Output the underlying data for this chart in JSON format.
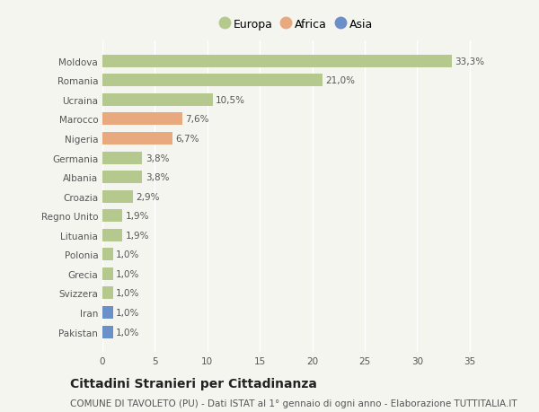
{
  "categories": [
    "Pakistan",
    "Iran",
    "Svizzera",
    "Grecia",
    "Polonia",
    "Lituania",
    "Regno Unito",
    "Croazia",
    "Albania",
    "Germania",
    "Nigeria",
    "Marocco",
    "Ucraina",
    "Romania",
    "Moldova"
  ],
  "values": [
    1.0,
    1.0,
    1.0,
    1.0,
    1.0,
    1.9,
    1.9,
    2.9,
    3.8,
    3.8,
    6.7,
    7.6,
    10.5,
    21.0,
    33.3
  ],
  "labels": [
    "1,0%",
    "1,0%",
    "1,0%",
    "1,0%",
    "1,0%",
    "1,9%",
    "1,9%",
    "2,9%",
    "3,8%",
    "3,8%",
    "6,7%",
    "7,6%",
    "10,5%",
    "21,0%",
    "33,3%"
  ],
  "continents": [
    "Asia",
    "Asia",
    "Europa",
    "Europa",
    "Europa",
    "Europa",
    "Europa",
    "Europa",
    "Europa",
    "Europa",
    "Africa",
    "Africa",
    "Europa",
    "Europa",
    "Europa"
  ],
  "colors": {
    "Europa": "#b5c98e",
    "Africa": "#e8a97e",
    "Asia": "#6b8fc9"
  },
  "legend_items": [
    "Europa",
    "Africa",
    "Asia"
  ],
  "title": "Cittadini Stranieri per Cittadinanza",
  "subtitle": "COMUNE DI TAVOLETO (PU) - Dati ISTAT al 1° gennaio di ogni anno - Elaborazione TUTTITALIA.IT",
  "xlim": [
    0,
    37
  ],
  "xticks": [
    0,
    5,
    10,
    15,
    20,
    25,
    30,
    35
  ],
  "background_color": "#f5f5f0",
  "grid_color": "#ffffff",
  "bar_height": 0.65,
  "title_fontsize": 10,
  "subtitle_fontsize": 7.5,
  "label_fontsize": 7.5,
  "tick_fontsize": 7.5,
  "legend_fontsize": 9
}
